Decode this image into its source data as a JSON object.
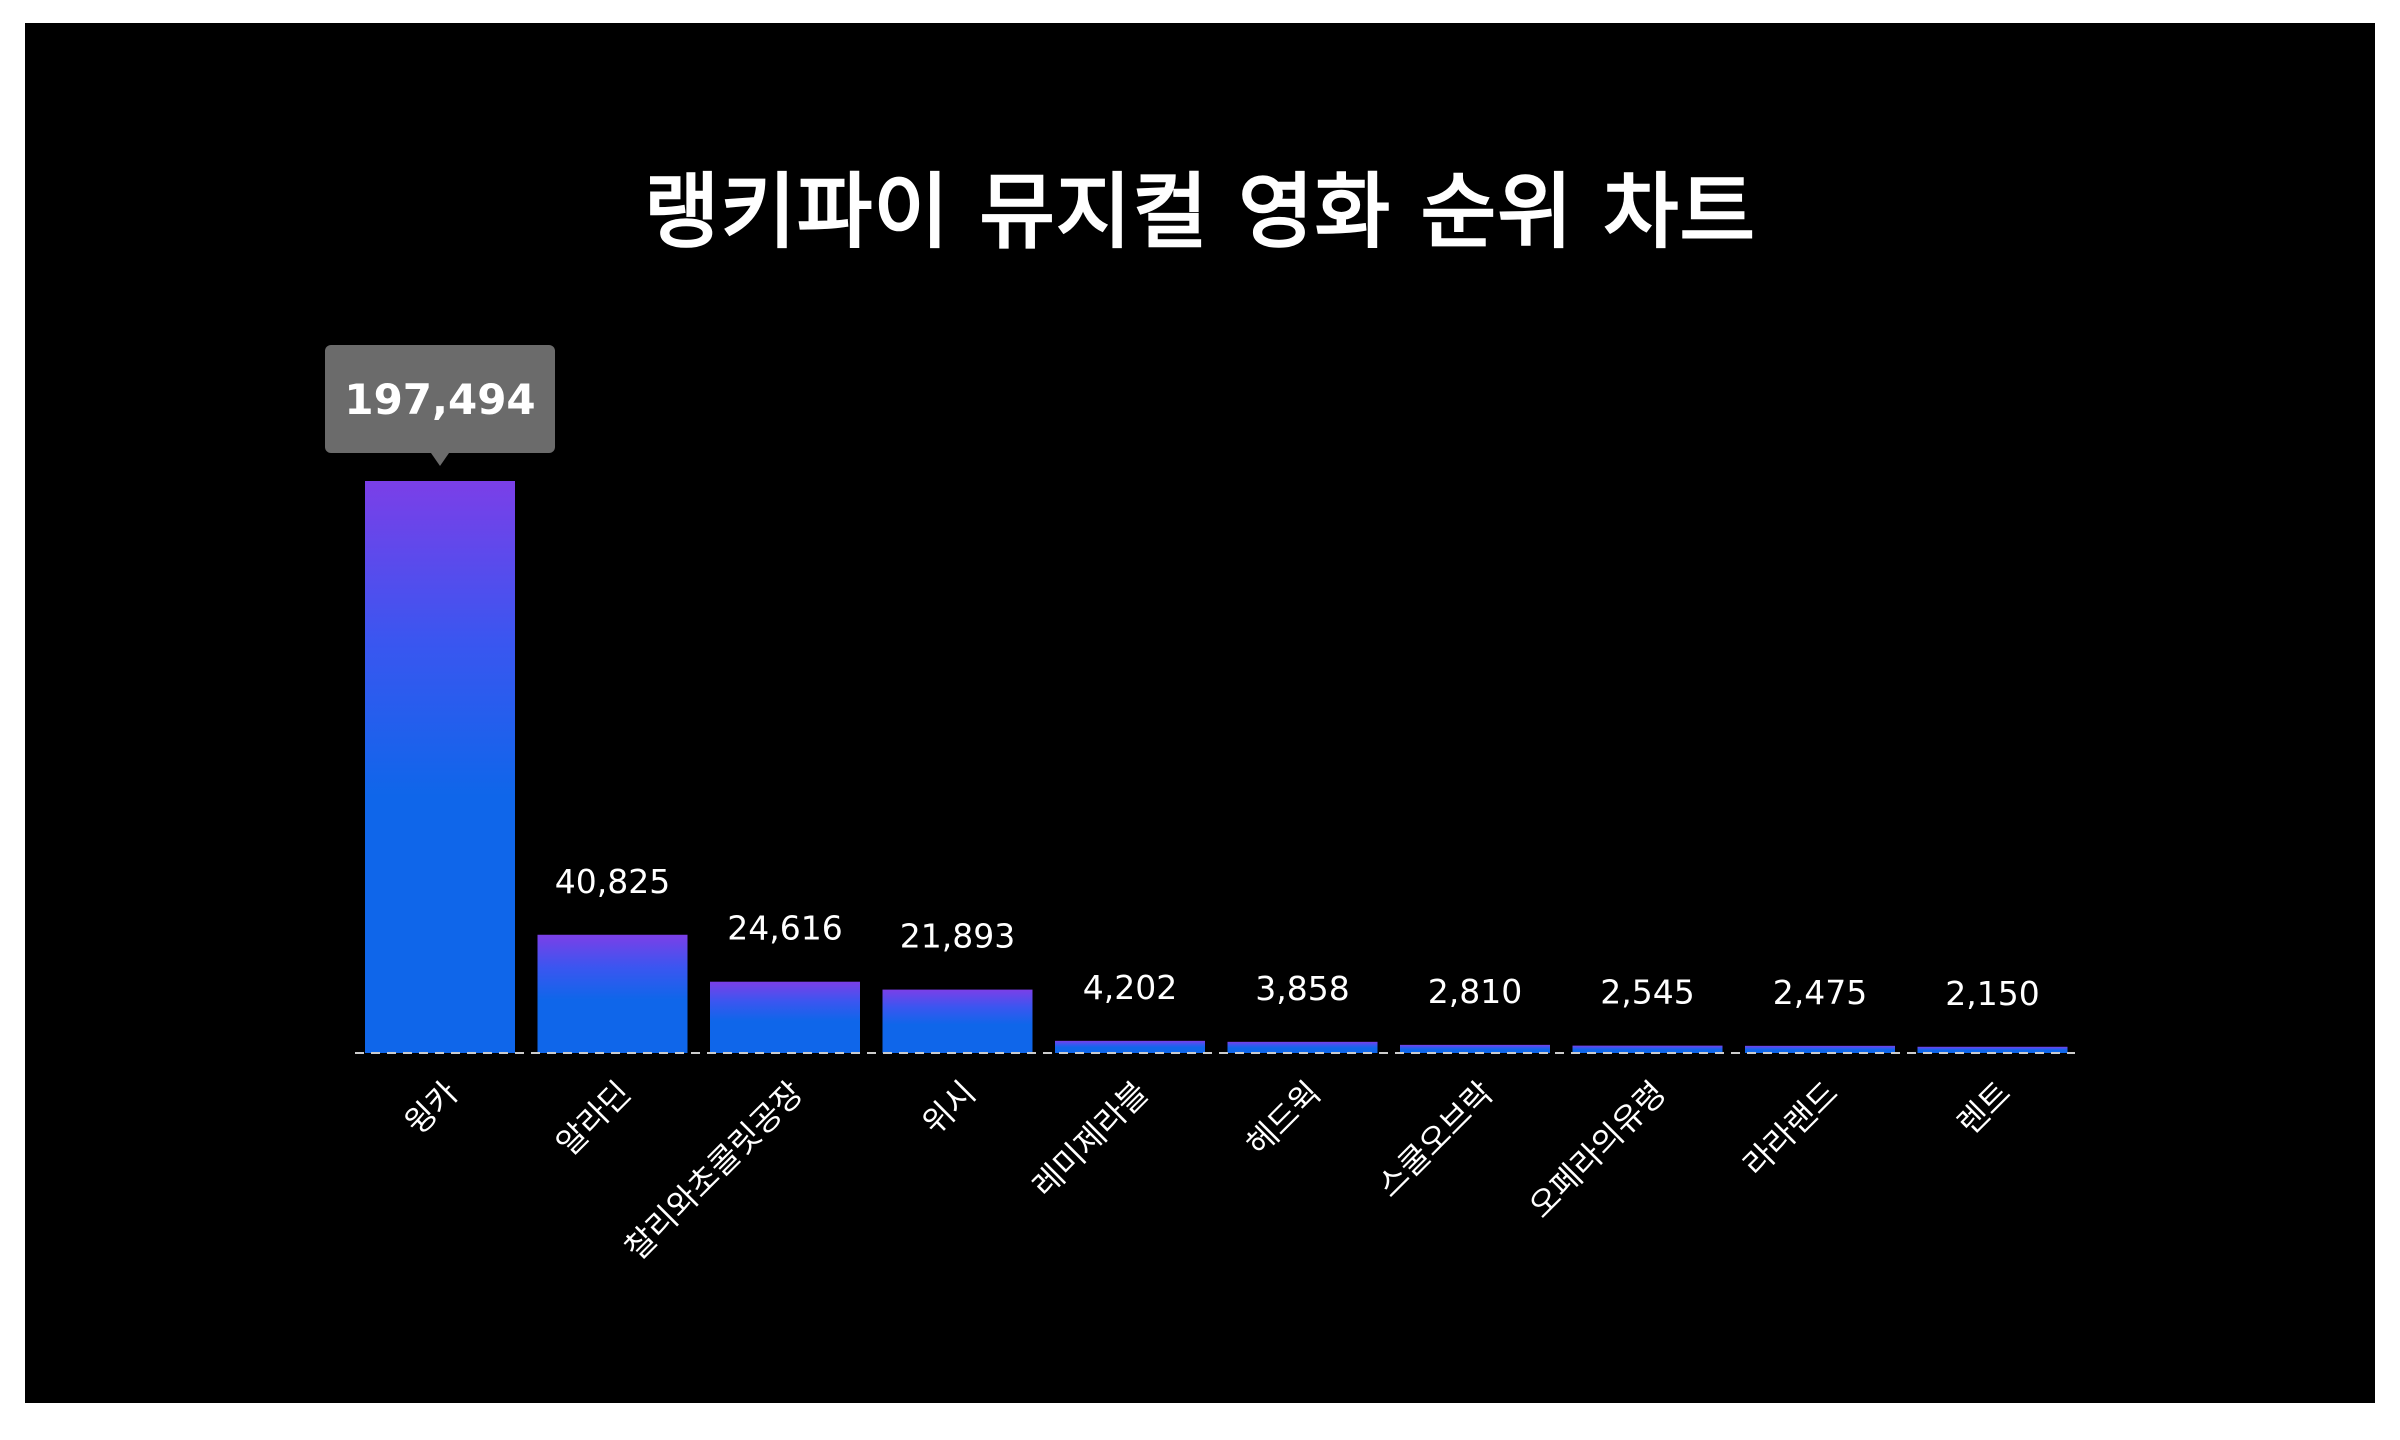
{
  "chart_data": {
    "type": "bar",
    "title": "랭키파이 뮤지컬 영화 순위 차트",
    "categories": [
      "윙카",
      "알라딘",
      "찰리와초콜릿공장",
      "위시",
      "레미제라블",
      "헤드윅",
      "스쿨오브락",
      "오페라의유령",
      "라라랜드",
      "렌트"
    ],
    "values": [
      197494,
      40825,
      24616,
      21893,
      4202,
      3858,
      2810,
      2545,
      2475,
      2150
    ],
    "value_labels": [
      "197,494",
      "40,825",
      "24,616",
      "21,893",
      "4,202",
      "3,858",
      "2,810",
      "2,545",
      "2,475",
      "2,150"
    ],
    "highlighted_index": 0,
    "ylim": [
      0,
      197494
    ],
    "grid": false,
    "legend": "none",
    "xlabel": "",
    "ylabel": ""
  },
  "colors": {
    "background": "#000000",
    "bar_top": "#7b3fe8",
    "bar_mid": "#3a56f0",
    "bar_bottom": "#0f66ea",
    "baseline": "#cccccc",
    "text": "#ffffff",
    "tooltip_bg": "#6b6b6b"
  }
}
